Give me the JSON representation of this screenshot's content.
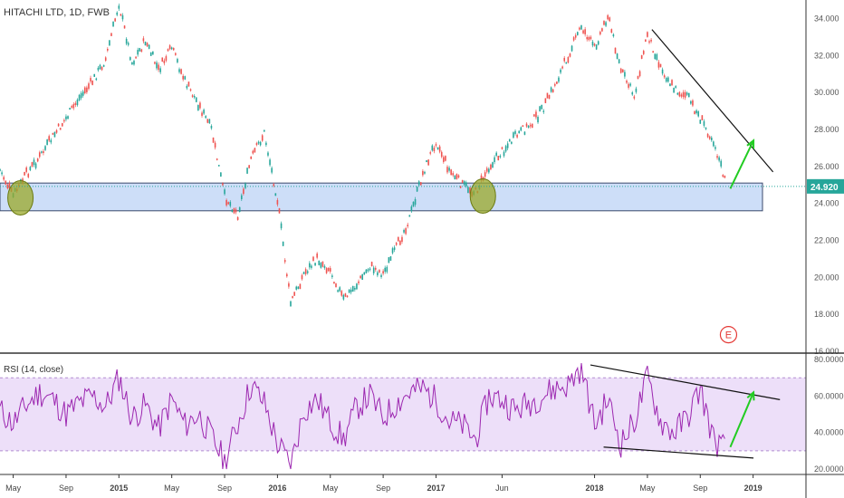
{
  "chart_data": [
    {
      "type": "candlestick",
      "title": "HITACHI LTD, 1D, FWB",
      "y_ticks": [
        16,
        18,
        20,
        22,
        24,
        26,
        28,
        30,
        32,
        34
      ],
      "y_tick_labels": [
        "16.000",
        "18.000",
        "20.000",
        "22.000",
        "24.000",
        "26.000",
        "28.000",
        "30.000",
        "32.000",
        "34.000"
      ],
      "ylim": [
        16,
        35
      ],
      "last_price": 24.92,
      "last_price_label": "24.920",
      "series": [
        {
          "values": [
            {
              "date": "2014-04",
              "price": 25.8
            },
            {
              "date": "2014-05",
              "price": 24.4
            },
            {
              "date": "2014-06",
              "price": 25.6
            },
            {
              "date": "2014-07",
              "price": 26.5
            },
            {
              "date": "2014-08",
              "price": 27.6
            },
            {
              "date": "2014-09",
              "price": 28.6
            },
            {
              "date": "2014-10",
              "price": 29.7
            },
            {
              "date": "2014-11",
              "price": 30.6
            },
            {
              "date": "2014-12",
              "price": 31.8
            },
            {
              "date": "2015-01",
              "price": 34.8
            },
            {
              "date": "2015-02",
              "price": 31.6
            },
            {
              "date": "2015-03",
              "price": 32.8
            },
            {
              "date": "2015-04",
              "price": 31.2
            },
            {
              "date": "2015-05",
              "price": 32.4
            },
            {
              "date": "2015-06",
              "price": 30.6
            },
            {
              "date": "2015-07",
              "price": 29.4
            },
            {
              "date": "2015-08",
              "price": 28.0
            },
            {
              "date": "2015-09",
              "price": 24.4
            },
            {
              "date": "2015-10",
              "price": 23.4
            },
            {
              "date": "2015-11",
              "price": 26.4
            },
            {
              "date": "2015-12",
              "price": 27.8
            },
            {
              "date": "2016-01",
              "price": 24.2
            },
            {
              "date": "2016-02",
              "price": 18.6
            },
            {
              "date": "2016-03",
              "price": 20.2
            },
            {
              "date": "2016-04",
              "price": 21.0
            },
            {
              "date": "2016-05",
              "price": 20.4
            },
            {
              "date": "2016-06",
              "price": 18.8
            },
            {
              "date": "2016-07",
              "price": 19.6
            },
            {
              "date": "2016-08",
              "price": 20.6
            },
            {
              "date": "2016-09",
              "price": 20.2
            },
            {
              "date": "2016-10",
              "price": 21.6
            },
            {
              "date": "2016-11",
              "price": 23.2
            },
            {
              "date": "2016-12",
              "price": 25.6
            },
            {
              "date": "2017-01",
              "price": 27.4
            },
            {
              "date": "2017-02",
              "price": 25.8
            },
            {
              "date": "2017-03",
              "price": 25.0
            },
            {
              "date": "2017-04",
              "price": 24.6
            },
            {
              "date": "2017-05",
              "price": 26.0
            },
            {
              "date": "2017-06",
              "price": 26.8
            },
            {
              "date": "2017-07",
              "price": 27.6
            },
            {
              "date": "2017-08",
              "price": 28.2
            },
            {
              "date": "2017-09",
              "price": 29.0
            },
            {
              "date": "2017-10",
              "price": 30.4
            },
            {
              "date": "2017-11",
              "price": 32.0
            },
            {
              "date": "2017-12",
              "price": 33.6
            },
            {
              "date": "2018-01",
              "price": 32.4
            },
            {
              "date": "2018-02",
              "price": 34.2
            },
            {
              "date": "2018-03",
              "price": 31.2
            },
            {
              "date": "2018-04",
              "price": 29.8
            },
            {
              "date": "2018-05",
              "price": 33.2
            },
            {
              "date": "2018-06",
              "price": 31.4
            },
            {
              "date": "2018-07",
              "price": 30.2
            },
            {
              "date": "2018-08",
              "price": 29.8
            },
            {
              "date": "2018-09",
              "price": 28.6
            },
            {
              "date": "2018-10",
              "price": 27.4
            },
            {
              "date": "2018-11",
              "price": 24.92
            }
          ]
        }
      ],
      "support_zone": {
        "low": 23.6,
        "high": 25.1
      },
      "highlights": [
        {
          "date": "2014-05",
          "price": 24.3
        },
        {
          "date": "2017-04",
          "price": 24.4
        }
      ],
      "trendline": {
        "from": {
          "date": "2018-05",
          "price": 33.4
        },
        "to": {
          "date": "2019-01",
          "price": 25.7
        }
      },
      "arrow": {
        "from": {
          "date": "2018-11",
          "price": 24.8
        },
        "to": {
          "date": "2018-12",
          "price": 27.4
        }
      },
      "event_marker": {
        "date": "2018-11",
        "price": 16.9,
        "label": "E"
      },
      "colors": {
        "up": "#26a69a",
        "down": "#ef5350",
        "zone": "#bcd3f5",
        "highlight": "#9aa829",
        "trend": "#111111",
        "arrow": "#22cc22",
        "price": "#26a69a"
      }
    },
    {
      "type": "line",
      "title": "RSI (14, close)",
      "y_ticks": [
        20,
        40,
        60,
        80
      ],
      "y_tick_labels": [
        "20.0000",
        "40.0000",
        "60.0000",
        "80.0000"
      ],
      "ylim": [
        18,
        82
      ],
      "bands": [
        30,
        70
      ],
      "series": [
        {
          "values": [
            {
              "date": "2014-04",
              "rsi": 52
            },
            {
              "date": "2014-05",
              "rsi": 45
            },
            {
              "date": "2014-06",
              "rsi": 55
            },
            {
              "date": "2014-07",
              "rsi": 62
            },
            {
              "date": "2014-08",
              "rsi": 58
            },
            {
              "date": "2014-09",
              "rsi": 50
            },
            {
              "date": "2014-10",
              "rsi": 56
            },
            {
              "date": "2014-11",
              "rsi": 60
            },
            {
              "date": "2014-12",
              "rsi": 54
            },
            {
              "date": "2015-01",
              "rsi": 70
            },
            {
              "date": "2015-02",
              "rsi": 48
            },
            {
              "date": "2015-03",
              "rsi": 55
            },
            {
              "date": "2015-04",
              "rsi": 42
            },
            {
              "date": "2015-05",
              "rsi": 58
            },
            {
              "date": "2015-06",
              "rsi": 44
            },
            {
              "date": "2015-07",
              "rsi": 50
            },
            {
              "date": "2015-08",
              "rsi": 38
            },
            {
              "date": "2015-09",
              "rsi": 24
            },
            {
              "date": "2015-10",
              "rsi": 45
            },
            {
              "date": "2015-11",
              "rsi": 66
            },
            {
              "date": "2015-12",
              "rsi": 56
            },
            {
              "date": "2016-01",
              "rsi": 34
            },
            {
              "date": "2016-02",
              "rsi": 22
            },
            {
              "date": "2016-03",
              "rsi": 52
            },
            {
              "date": "2016-04",
              "rsi": 58
            },
            {
              "date": "2016-05",
              "rsi": 46
            },
            {
              "date": "2016-06",
              "rsi": 36
            },
            {
              "date": "2016-07",
              "rsi": 54
            },
            {
              "date": "2016-08",
              "rsi": 60
            },
            {
              "date": "2016-09",
              "rsi": 48
            },
            {
              "date": "2016-10",
              "rsi": 56
            },
            {
              "date": "2016-11",
              "rsi": 62
            },
            {
              "date": "2016-12",
              "rsi": 64
            },
            {
              "date": "2017-01",
              "rsi": 58
            },
            {
              "date": "2017-02",
              "rsi": 46
            },
            {
              "date": "2017-03",
              "rsi": 44
            },
            {
              "date": "2017-04",
              "rsi": 36
            },
            {
              "date": "2017-05",
              "rsi": 60
            },
            {
              "date": "2017-06",
              "rsi": 58
            },
            {
              "date": "2017-07",
              "rsi": 52
            },
            {
              "date": "2017-08",
              "rsi": 56
            },
            {
              "date": "2017-09",
              "rsi": 60
            },
            {
              "date": "2017-10",
              "rsi": 64
            },
            {
              "date": "2017-11",
              "rsi": 66
            },
            {
              "date": "2017-12",
              "rsi": 76
            },
            {
              "date": "2018-01",
              "rsi": 44
            },
            {
              "date": "2018-02",
              "rsi": 58
            },
            {
              "date": "2018-03",
              "rsi": 34
            },
            {
              "date": "2018-04",
              "rsi": 46
            },
            {
              "date": "2018-05",
              "rsi": 70
            },
            {
              "date": "2018-06",
              "rsi": 46
            },
            {
              "date": "2018-07",
              "rsi": 40
            },
            {
              "date": "2018-08",
              "rsi": 48
            },
            {
              "date": "2018-09",
              "rsi": 64
            },
            {
              "date": "2018-10",
              "rsi": 36
            },
            {
              "date": "2018-11",
              "rsi": 30
            }
          ]
        }
      ],
      "trendlines": [
        {
          "from": {
            "date": "2017-12",
            "rsi": 77
          },
          "to": {
            "date": "2019-02",
            "rsi": 58
          }
        },
        {
          "from": {
            "date": "2018-01",
            "rsi": 32
          },
          "to": {
            "date": "2018-12",
            "rsi": 26
          }
        }
      ],
      "arrow": {
        "from": {
          "date": "2018-11",
          "rsi": 32
        },
        "to": {
          "date": "2018-12",
          "rsi": 62
        }
      },
      "colors": {
        "line": "#9c27b0",
        "band": "#e9d7f7",
        "arrow": "#22cc22",
        "trend": "#111111"
      }
    }
  ],
  "x_axis": {
    "labels": [
      {
        "label": "May",
        "date": "2014-05",
        "bold": false
      },
      {
        "label": "Sep",
        "date": "2014-09",
        "bold": false
      },
      {
        "label": "2015",
        "date": "2015-01",
        "bold": true
      },
      {
        "label": "May",
        "date": "2015-05",
        "bold": false
      },
      {
        "label": "Sep",
        "date": "2015-09",
        "bold": false
      },
      {
        "label": "2016",
        "date": "2016-01",
        "bold": true
      },
      {
        "label": "May",
        "date": "2016-05",
        "bold": false
      },
      {
        "label": "Sep",
        "date": "2016-09",
        "bold": false
      },
      {
        "label": "2017",
        "date": "2017-01",
        "bold": true
      },
      {
        "label": "Jun",
        "date": "2017-06",
        "bold": false
      },
      {
        "label": "2018",
        "date": "2018-01",
        "bold": true
      },
      {
        "label": "May",
        "date": "2018-05",
        "bold": false
      },
      {
        "label": "Sep",
        "date": "2018-09",
        "bold": false
      },
      {
        "label": "2019",
        "date": "2019-01",
        "bold": true
      }
    ],
    "range": [
      "2014-04",
      "2019-05"
    ]
  }
}
